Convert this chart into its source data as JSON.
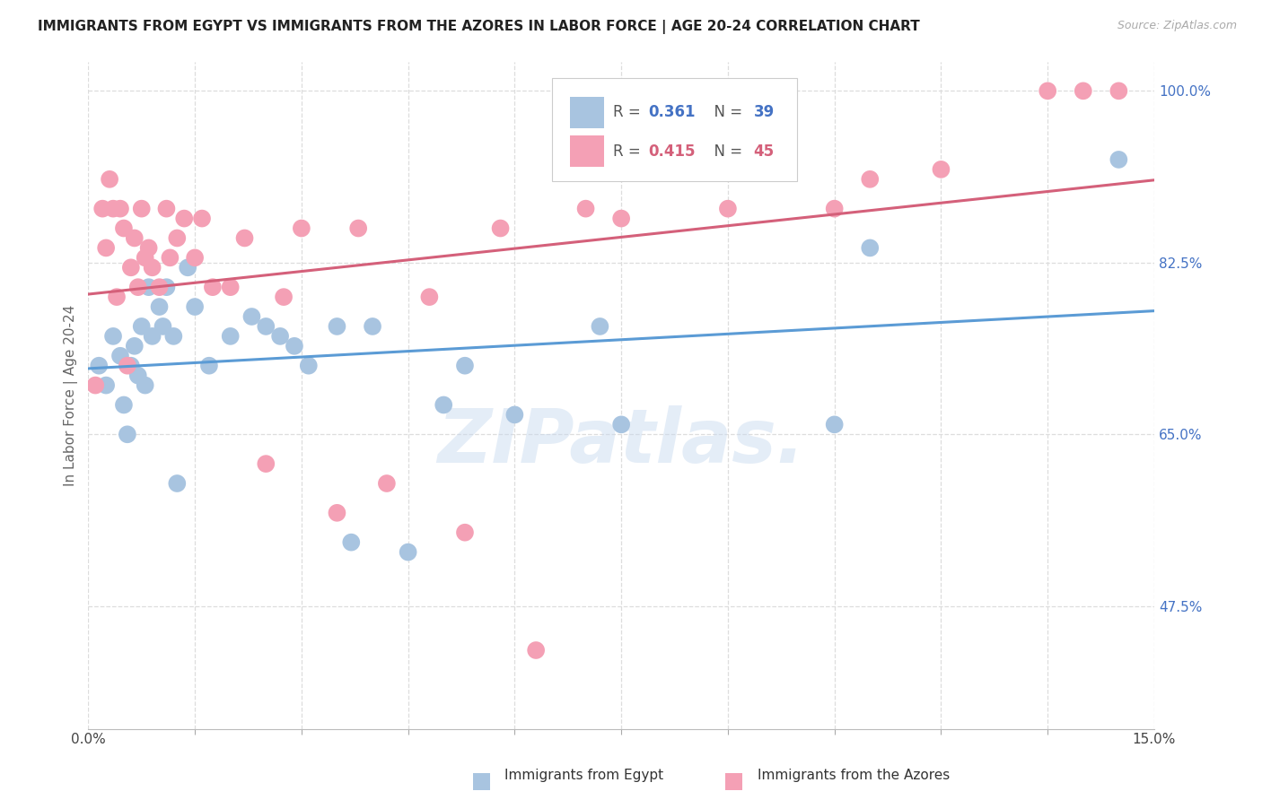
{
  "title": "IMMIGRANTS FROM EGYPT VS IMMIGRANTS FROM THE AZORES IN LABOR FORCE | AGE 20-24 CORRELATION CHART",
  "source": "Source: ZipAtlas.com",
  "ylabel": "In Labor Force | Age 20-24",
  "xmin": 0.0,
  "xmax": 15.0,
  "ymin": 35.0,
  "ymax": 103.0,
  "ytick_vals": [
    47.5,
    65.0,
    82.5,
    100.0
  ],
  "legend_R1": "0.361",
  "legend_N1": "39",
  "legend_R2": "0.415",
  "legend_N2": "45",
  "color_egypt": "#a8c4e0",
  "color_azores": "#f4a0b5",
  "color_egypt_line": "#5b9bd5",
  "color_azores_line": "#d4607a",
  "color_blue_text": "#4472c4",
  "color_pink_text": "#d4607a",
  "color_title": "#222222",
  "color_source": "#aaaaaa",
  "color_grid": "#dddddd",
  "color_axis_label": "#666666",
  "egypt_x": [
    0.15,
    0.25,
    0.35,
    0.45,
    0.5,
    0.55,
    0.6,
    0.65,
    0.7,
    0.75,
    0.8,
    0.85,
    0.9,
    1.0,
    1.05,
    1.1,
    1.2,
    1.25,
    1.4,
    1.5,
    1.7,
    2.0,
    2.3,
    2.5,
    2.7,
    2.9,
    3.1,
    3.5,
    3.7,
    4.0,
    4.5,
    5.0,
    5.3,
    6.0,
    7.2,
    7.5,
    10.5,
    11.0,
    14.5
  ],
  "egypt_y": [
    72,
    70,
    75,
    73,
    68,
    65,
    72,
    74,
    71,
    76,
    70,
    80,
    75,
    78,
    76,
    80,
    75,
    60,
    82,
    78,
    72,
    75,
    77,
    76,
    75,
    74,
    72,
    76,
    54,
    76,
    53,
    68,
    72,
    67,
    76,
    66,
    66,
    84,
    93
  ],
  "azores_x": [
    0.1,
    0.2,
    0.25,
    0.3,
    0.35,
    0.4,
    0.45,
    0.5,
    0.55,
    0.6,
    0.65,
    0.7,
    0.75,
    0.8,
    0.85,
    0.9,
    1.0,
    1.1,
    1.15,
    1.25,
    1.35,
    1.5,
    1.6,
    1.75,
    2.0,
    2.2,
    2.5,
    2.75,
    3.0,
    3.5,
    3.8,
    4.2,
    4.8,
    5.3,
    5.8,
    6.3,
    7.0,
    7.5,
    9.0,
    10.5,
    11.0,
    12.0,
    13.5,
    14.0,
    14.5
  ],
  "azores_y": [
    70,
    88,
    84,
    91,
    88,
    79,
    88,
    86,
    72,
    82,
    85,
    80,
    88,
    83,
    84,
    82,
    80,
    88,
    83,
    85,
    87,
    83,
    87,
    80,
    80,
    85,
    62,
    79,
    86,
    57,
    86,
    60,
    79,
    55,
    86,
    43,
    88,
    87,
    88,
    88,
    91,
    92,
    100,
    100,
    100
  ],
  "watermark": "ZIPatlas.",
  "background_color": "#ffffff"
}
